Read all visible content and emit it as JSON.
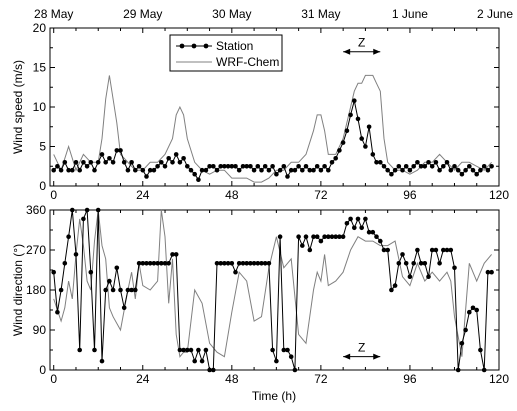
{
  "chart_data": [
    {
      "type": "line",
      "xlabel": "",
      "ylabel": "Wind speed (m/s)",
      "xlim": [
        -1,
        120
      ],
      "ylim": [
        0,
        20
      ],
      "xticks": [
        0,
        24,
        48,
        72,
        96,
        120
      ],
      "yticks": [
        0,
        5,
        10,
        15,
        20
      ],
      "top_axis_labels": [
        {
          "x": 0,
          "label": "28 May"
        },
        {
          "x": 24,
          "label": "29 May"
        },
        {
          "x": 48,
          "label": "30 May"
        },
        {
          "x": 72,
          "label": "31 May"
        },
        {
          "x": 96,
          "label": "1 June"
        },
        {
          "x": 120,
          "label": "2 June"
        }
      ],
      "legend": {
        "position": "top-center"
      },
      "annotation": {
        "text": "Z",
        "x_from": 78,
        "x_to": 88,
        "y": 17
      },
      "series": [
        {
          "name": "Station",
          "style": "line-with-dots",
          "x": [
            0,
            1,
            2,
            3,
            4,
            5,
            6,
            7,
            8,
            9,
            10,
            11,
            12,
            13,
            14,
            15,
            16,
            17,
            18,
            19,
            20,
            21,
            22,
            23,
            24,
            25,
            26,
            27,
            28,
            29,
            30,
            31,
            32,
            33,
            34,
            35,
            36,
            37,
            38,
            39,
            40,
            41,
            42,
            43,
            44,
            45,
            46,
            47,
            48,
            49,
            50,
            51,
            52,
            53,
            54,
            55,
            56,
            57,
            58,
            59,
            60,
            61,
            62,
            63,
            64,
            65,
            66,
            67,
            68,
            69,
            70,
            71,
            72,
            73,
            74,
            75,
            76,
            77,
            78,
            79,
            80,
            81,
            82,
            83,
            84,
            85,
            86,
            87,
            88,
            89,
            90,
            91,
            92,
            93,
            94,
            95,
            96,
            97,
            98,
            99,
            100,
            101,
            102,
            103,
            104,
            105,
            106,
            107,
            108,
            109,
            110,
            111,
            112,
            113,
            114,
            115,
            116,
            117,
            118
          ],
          "values": [
            2,
            2.5,
            2,
            3,
            2,
            2,
            3,
            2,
            3,
            2.5,
            3,
            2,
            3,
            4,
            3,
            3.5,
            3,
            4.5,
            4.5,
            3,
            2,
            3,
            2,
            2.5,
            2,
            1.2,
            2,
            2,
            2.5,
            3,
            2.5,
            3.5,
            3,
            4,
            3,
            3.5,
            2.5,
            2,
            1.5,
            0.8,
            2,
            2,
            2.5,
            2.5,
            2,
            2.5,
            2.5,
            2.5,
            2.5,
            2.5,
            2,
            2.5,
            2.5,
            2.5,
            2,
            2.5,
            2,
            2.5,
            2,
            2.5,
            1.5,
            2,
            2.5,
            1.2,
            2,
            2,
            2.5,
            2,
            2.5,
            2,
            2,
            2.5,
            2,
            2.5,
            2,
            3,
            3.5,
            4.5,
            5.5,
            7,
            9,
            10.8,
            8.5,
            6,
            5,
            7.5,
            4,
            3,
            3,
            2.5,
            2,
            1.5,
            2,
            2.5,
            2,
            2.5,
            2,
            2.5,
            3,
            2.5,
            2.5,
            3,
            2.5,
            3,
            2,
            2.5,
            3,
            2,
            2.5,
            2,
            1.5,
            2,
            2.5,
            2,
            1.5,
            2,
            2.5,
            2,
            2.5
          ]
        },
        {
          "name": "WRF-Chem",
          "style": "line",
          "x": [
            0,
            2,
            4,
            6,
            8,
            10,
            12,
            13,
            14,
            15,
            16,
            17,
            18,
            20,
            22,
            24,
            26,
            28,
            30,
            32,
            33,
            34,
            35,
            36,
            38,
            40,
            42,
            44,
            46,
            48,
            50,
            52,
            54,
            56,
            58,
            60,
            62,
            64,
            66,
            68,
            70,
            71,
            72,
            73,
            74,
            76,
            78,
            80,
            81,
            82,
            83,
            84,
            85,
            86,
            87,
            88,
            89,
            90,
            92,
            94,
            96,
            98,
            100,
            102,
            104,
            106,
            108,
            110,
            112,
            114,
            116,
            118
          ],
          "values": [
            4,
            2,
            5,
            2,
            4,
            3,
            3,
            6,
            11,
            14,
            11,
            8,
            4,
            3,
            2,
            2,
            3,
            3,
            4,
            6,
            9,
            10,
            9,
            6,
            3,
            2,
            1.5,
            2,
            2,
            1,
            1,
            1,
            0.5,
            0.5,
            1,
            2,
            2,
            3,
            3,
            4,
            7,
            9,
            9,
            7,
            4,
            4,
            6,
            10,
            12,
            13,
            13,
            14,
            14,
            14,
            13,
            12,
            6,
            3,
            2,
            2,
            1.5,
            2,
            3,
            3,
            4,
            3,
            2,
            3,
            3,
            2.5,
            2,
            3
          ]
        }
      ]
    },
    {
      "type": "line",
      "xlabel": "Time (h)",
      "ylabel": "Wind direction (°)",
      "xlim": [
        -1,
        120
      ],
      "ylim": [
        0,
        360
      ],
      "xticks": [
        0,
        24,
        48,
        72,
        96,
        120
      ],
      "yticks": [
        0,
        90,
        180,
        270,
        360
      ],
      "annotation": {
        "text": "Z",
        "x_from": 78,
        "x_to": 88,
        "y": 30
      },
      "series": [
        {
          "name": "Station",
          "style": "line-with-dots",
          "x": [
            0,
            1,
            2,
            3,
            4,
            5,
            6,
            7,
            8,
            9,
            10,
            11,
            12,
            13,
            14,
            15,
            16,
            17,
            18,
            19,
            20,
            21,
            22,
            23,
            24,
            25,
            26,
            27,
            28,
            29,
            30,
            31,
            32,
            33,
            34,
            35,
            36,
            37,
            38,
            39,
            40,
            41,
            42,
            43,
            44,
            45,
            46,
            47,
            48,
            49,
            50,
            51,
            52,
            53,
            54,
            55,
            56,
            57,
            58,
            59,
            60,
            61,
            62,
            63,
            64,
            65,
            66,
            67,
            68,
            69,
            70,
            71,
            72,
            73,
            74,
            75,
            76,
            77,
            78,
            79,
            80,
            81,
            82,
            83,
            84,
            85,
            86,
            87,
            88,
            89,
            90,
            91,
            92,
            93,
            94,
            95,
            96,
            97,
            98,
            99,
            100,
            101,
            102,
            103,
            104,
            105,
            106,
            107,
            108,
            109,
            110,
            111,
            112,
            113,
            114,
            115,
            116,
            117,
            118
          ],
          "values": [
            220,
            130,
            180,
            240,
            300,
            360,
            260,
            45,
            340,
            360,
            220,
            45,
            360,
            20,
            180,
            200,
            180,
            230,
            180,
            140,
            180,
            180,
            180,
            240,
            240,
            240,
            240,
            240,
            240,
            240,
            240,
            240,
            260,
            260,
            45,
            45,
            45,
            45,
            20,
            45,
            20,
            45,
            0,
            0,
            240,
            240,
            240,
            240,
            240,
            220,
            240,
            240,
            240,
            240,
            240,
            240,
            240,
            240,
            240,
            45,
            20,
            300,
            45,
            45,
            30,
            0,
            300,
            280,
            300,
            270,
            300,
            300,
            290,
            300,
            300,
            300,
            300,
            300,
            300,
            330,
            340,
            320,
            340,
            320,
            340,
            310,
            310,
            300,
            290,
            270,
            270,
            180,
            190,
            240,
            260,
            240,
            210,
            240,
            270,
            240,
            240,
            210,
            270,
            270,
            240,
            270,
            270,
            270,
            230,
            0,
            60,
            90,
            130,
            140,
            135,
            45,
            0,
            220,
            220
          ]
        },
        {
          "name": "WRF-Chem",
          "style": "line",
          "x": [
            0,
            2,
            3,
            4,
            5,
            6,
            7,
            8,
            9,
            10,
            11,
            12,
            13,
            14,
            15,
            16,
            18,
            20,
            21,
            22,
            23,
            24,
            26,
            28,
            29,
            30,
            31,
            32,
            33,
            34,
            35,
            36,
            38,
            40,
            42,
            44,
            46,
            48,
            50,
            52,
            54,
            56,
            58,
            60,
            62,
            64,
            66,
            68,
            70,
            71,
            72,
            73,
            74,
            76,
            78,
            80,
            82,
            84,
            86,
            88,
            90,
            92,
            94,
            96,
            98,
            100,
            102,
            104,
            106,
            107,
            108,
            110,
            112,
            114,
            116,
            118
          ],
          "values": [
            160,
            110,
            140,
            200,
            160,
            260,
            340,
            280,
            200,
            180,
            290,
            360,
            280,
            250,
            140,
            120,
            90,
            180,
            220,
            160,
            240,
            190,
            180,
            200,
            360,
            300,
            150,
            250,
            80,
            30,
            40,
            40,
            180,
            150,
            60,
            40,
            30,
            130,
            220,
            200,
            110,
            120,
            230,
            300,
            230,
            250,
            80,
            60,
            180,
            220,
            200,
            260,
            190,
            200,
            220,
            270,
            300,
            290,
            290,
            280,
            280,
            290,
            210,
            190,
            240,
            200,
            220,
            200,
            220,
            200,
            120,
            30,
            240,
            200,
            240,
            260
          ]
        }
      ]
    }
  ]
}
